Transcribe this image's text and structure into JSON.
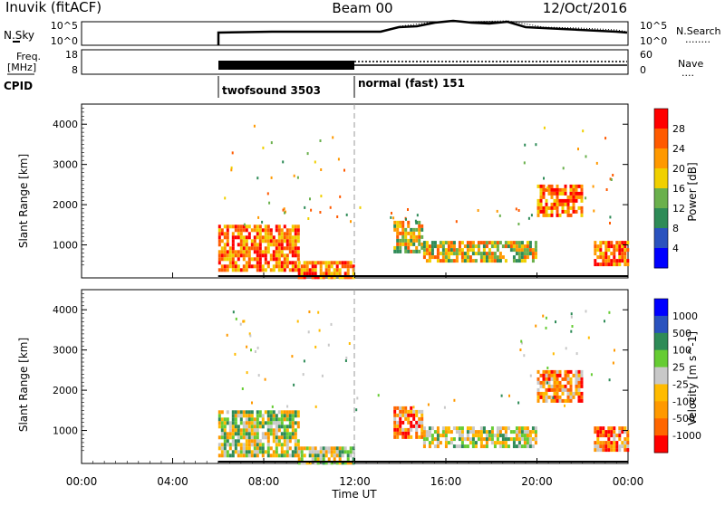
{
  "header": {
    "station": "Inuvik (fitACF)",
    "beam": "Beam 00",
    "date": "12/Oct/2016"
  },
  "noise_panel": {
    "left_label": "N.Sky",
    "left_ticks": [
      "10^5",
      "10^0"
    ],
    "right_ticks": [
      "10^5",
      "10^0"
    ],
    "right_label": "N.Search",
    "right_label_line": "........"
  },
  "freq_panel": {
    "left_label_1": "Freq.",
    "left_label_2": "[MHz]",
    "left_ticks": [
      "18",
      "8"
    ],
    "right_ticks": [
      "60",
      "0"
    ],
    "right_label": "Nave",
    "right_label_line": "...."
  },
  "cpid": {
    "label": "CPID",
    "modes": [
      {
        "name": "twofsound 3503",
        "start_hour": 6.0
      },
      {
        "name": "normal (fast) 151",
        "start_hour": 12.0
      }
    ]
  },
  "colors": {
    "power_scale": [
      "#0000ff",
      "#2a52be",
      "#2e8b57",
      "#6ab04c",
      "#f0d000",
      "#ff9900",
      "#ff5a00",
      "#ff0000"
    ],
    "velocity_scale": [
      "#ff0000",
      "#ff6600",
      "#ff9900",
      "#ffbb00",
      "#c8c8c8",
      "#66cc33",
      "#2e8b57",
      "#2a52be",
      "#0000ff"
    ]
  },
  "chart_data": [
    {
      "type": "heatmap",
      "title": "Power",
      "xlabel": "",
      "ylabel": "Slant Range [km]",
      "xlim": [
        0,
        24
      ],
      "ylim": [
        180,
        4500
      ],
      "yticks": [
        "1000",
        "2000",
        "3000",
        "4000"
      ],
      "colorbar_label": "Power [dB]",
      "colorbar_ticks": [
        "28",
        "24",
        "20",
        "16",
        "12",
        "8",
        "4"
      ],
      "echo_regions": [
        {
          "t0": 6.0,
          "t1": 9.5,
          "r0": 400,
          "r1": 1500,
          "level": "high"
        },
        {
          "t0": 9.5,
          "t1": 12.0,
          "r0": 200,
          "r1": 600,
          "level": "high"
        },
        {
          "t0": 13.7,
          "t1": 15.0,
          "r0": 800,
          "r1": 1600,
          "level": "medium"
        },
        {
          "t0": 15.0,
          "t1": 20.0,
          "r0": 600,
          "r1": 1100,
          "level": "medium"
        },
        {
          "t0": 20.0,
          "t1": 22.0,
          "r0": 1700,
          "r1": 2500,
          "level": "high"
        },
        {
          "t0": 22.5,
          "t1": 24.0,
          "r0": 500,
          "r1": 1100,
          "level": "high"
        }
      ]
    },
    {
      "type": "heatmap",
      "title": "Velocity",
      "xlabel": "Time UT",
      "ylabel": "Slant Range [km]",
      "xlim": [
        0,
        24
      ],
      "ylim": [
        180,
        4500
      ],
      "xticks": [
        "00:00",
        "04:00",
        "08:00",
        "12:00",
        "16:00",
        "20:00",
        "00:00"
      ],
      "yticks": [
        "1000",
        "2000",
        "3000",
        "4000"
      ],
      "colorbar_label": "Velocity [m s^-1]",
      "colorbar_ticks": [
        "1000",
        "500",
        "100",
        "25",
        "-25",
        "-100",
        "-500",
        "-1000"
      ],
      "echo_regions": [
        {
          "t0": 6.0,
          "t1": 9.5,
          "r0": 400,
          "r1": 1500,
          "level": "mixed"
        },
        {
          "t0": 9.5,
          "t1": 12.0,
          "r0": 200,
          "r1": 600,
          "level": "mixed"
        },
        {
          "t0": 13.7,
          "t1": 15.0,
          "r0": 800,
          "r1": 1600,
          "level": "negative"
        },
        {
          "t0": 15.0,
          "t1": 20.0,
          "r0": 600,
          "r1": 1100,
          "level": "mixed"
        },
        {
          "t0": 20.0,
          "t1": 22.0,
          "r0": 1700,
          "r1": 2500,
          "level": "negative"
        },
        {
          "t0": 22.5,
          "t1": 24.0,
          "r0": 500,
          "r1": 1100,
          "level": "negative"
        }
      ]
    }
  ]
}
